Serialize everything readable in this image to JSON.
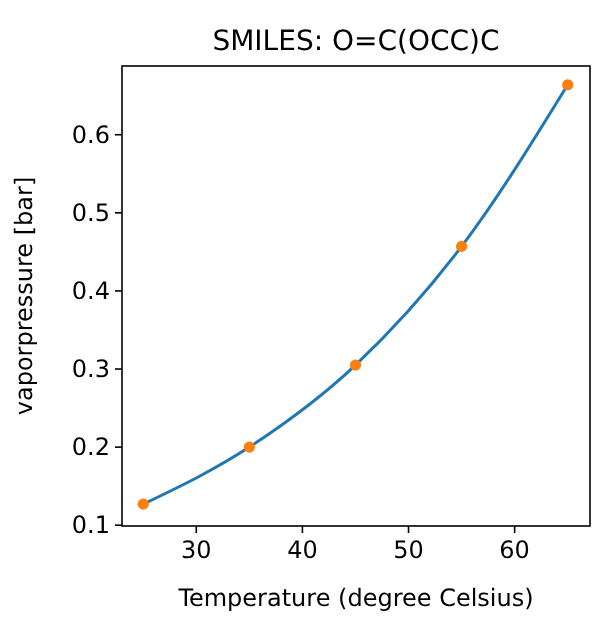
{
  "chart_data": {
    "type": "line",
    "title": "SMILES: O=C(OCC)C",
    "xlabel": "Temperature (degree Celsius)",
    "ylabel": "vaporpressure [bar]",
    "x": [
      25,
      35,
      45,
      55,
      65
    ],
    "series": [
      {
        "color": "#1f77b4",
        "values": [
          0.127,
          0.2,
          0.305,
          0.457,
          0.664
        ]
      },
      {
        "type": "scatter",
        "color": "#ff7f0e",
        "marker": "circle",
        "values": [
          0.127,
          0.2,
          0.305,
          0.457,
          0.664
        ]
      }
    ],
    "xlim": [
      23,
      67.1
    ],
    "ylim": [
      0.099,
      0.688
    ],
    "xticks": [
      30,
      40,
      50,
      60
    ],
    "yticks": [
      0.1,
      0.2,
      0.3,
      0.4,
      0.5,
      0.6
    ],
    "grid": false
  }
}
